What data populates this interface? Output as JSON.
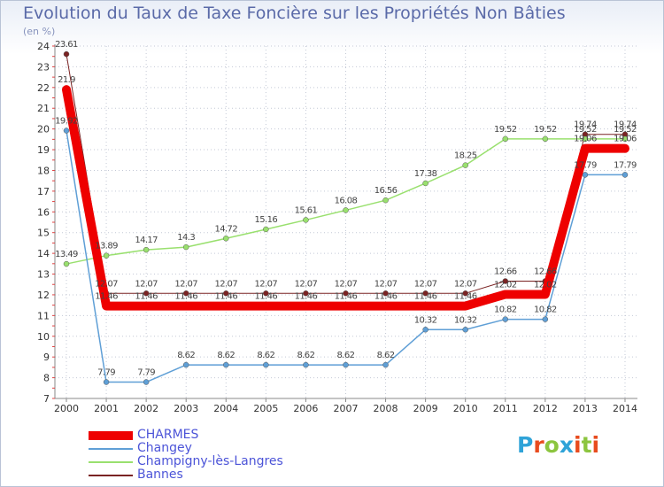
{
  "title": "Evolution du Taux de Taxe Foncière sur les Propriétés Non Bâties",
  "unit": "(en %)",
  "brand": [
    "P",
    "r",
    "o",
    "x",
    "i",
    "t",
    "i"
  ],
  "brand_colors": [
    "#2fa3d8",
    "#e84b1e",
    "#8cc53f",
    "#2fa3d8",
    "#e84b1e",
    "#8cc53f",
    "#e84b1e"
  ],
  "chart_data": {
    "type": "line",
    "title": "Evolution du Taux de Taxe Foncière sur les Propriétés Non Bâties",
    "ylabel": "(en %)",
    "ylim": [
      7,
      24
    ],
    "yticks": [
      7,
      8,
      9,
      10,
      11,
      12,
      13,
      14,
      15,
      16,
      17,
      18,
      19,
      20,
      21,
      22,
      23,
      24
    ],
    "categories": [
      "2000",
      "2001",
      "2002",
      "2003",
      "2004",
      "2005",
      "2006",
      "2007",
      "2008",
      "2009",
      "2010",
      "2011",
      "2012",
      "2013",
      "2014"
    ],
    "series": [
      {
        "name": "Bannes",
        "color": "#7a2323",
        "width": 1,
        "labels": [
          "23.61",
          "12.07",
          "12.07",
          "12.07",
          "12.07",
          "12.07",
          "12.07",
          "12.07",
          "12.07",
          "12.07",
          "12.07",
          "12.66",
          "12.66",
          "19.74",
          "19.74"
        ],
        "values": [
          23.61,
          12.07,
          12.07,
          12.07,
          12.07,
          12.07,
          12.07,
          12.07,
          12.07,
          12.07,
          12.07,
          12.66,
          12.66,
          19.74,
          19.74
        ]
      },
      {
        "name": "Champigny-lès-Langres",
        "color": "#99e06e",
        "width": 1.5,
        "labels": [
          "13.49",
          "13.89",
          "14.17",
          "14.3",
          "14.72",
          "15.16",
          "15.61",
          "16.08",
          "16.56",
          "17.38",
          "18.25",
          "19.52",
          "19.52",
          "19.52",
          "19.52"
        ],
        "values": [
          13.49,
          13.89,
          14.17,
          14.3,
          14.72,
          15.16,
          15.61,
          16.08,
          16.56,
          17.38,
          18.25,
          19.52,
          19.52,
          19.52,
          19.52
        ]
      },
      {
        "name": "Changey",
        "color": "#5f9fd6",
        "width": 1.5,
        "labels": [
          "19.92",
          "7.79",
          "7.79",
          "8.62",
          "8.62",
          "8.62",
          "8.62",
          "8.62",
          "8.62",
          "10.32",
          "10.32",
          "10.82",
          "10.82",
          "17.79",
          "17.79"
        ],
        "values": [
          19.92,
          7.79,
          7.79,
          8.62,
          8.62,
          8.62,
          8.62,
          8.62,
          8.62,
          10.32,
          10.32,
          10.82,
          10.82,
          17.79,
          17.79
        ]
      },
      {
        "name": "CHARMES",
        "color": "#ee0000",
        "width": 10,
        "labels": [
          "21.9",
          "11.46",
          "11.46",
          "11.46",
          "11.46",
          "11.46",
          "11.46",
          "11.46",
          "11.46",
          "11.46",
          "11.46",
          "12.02",
          "12.02",
          "19.06",
          "19.06"
        ],
        "values": [
          21.9,
          11.46,
          11.46,
          11.46,
          11.46,
          11.46,
          11.46,
          11.46,
          11.46,
          11.46,
          11.46,
          12.02,
          12.02,
          19.06,
          19.06
        ]
      }
    ],
    "legend": [
      "CHARMES",
      "Changey",
      "Champigny-lès-Langres",
      "Bannes"
    ],
    "legend_position": "bottom-left"
  }
}
